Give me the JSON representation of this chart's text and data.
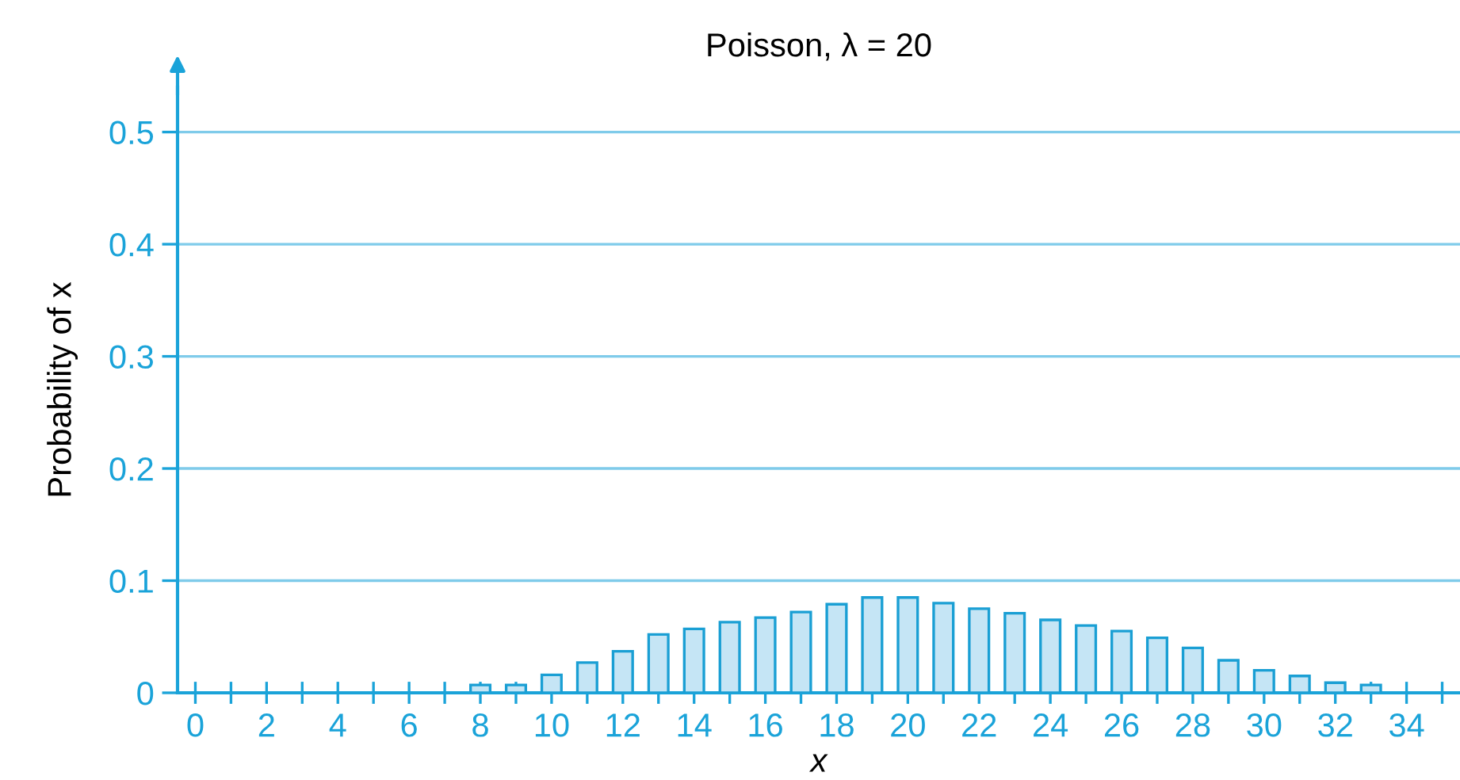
{
  "chart_data": {
    "type": "bar",
    "title": "Poisson, λ = 20",
    "xlabel": "x",
    "ylabel": "Probability of x",
    "x": [
      8,
      9,
      10,
      11,
      12,
      13,
      14,
      15,
      16,
      17,
      18,
      19,
      20,
      21,
      22,
      23,
      24,
      25,
      26,
      27,
      28,
      29,
      30,
      31,
      32,
      33
    ],
    "series": [
      {
        "color": "#c5e5f5",
        "values": [
          0.007,
          0.007,
          0.016,
          0.027,
          0.037,
          0.052,
          0.057,
          0.063,
          0.067,
          0.072,
          0.079,
          0.085,
          0.085,
          0.08,
          0.075,
          0.071,
          0.065,
          0.06,
          0.055,
          0.049,
          0.04,
          0.029,
          0.02,
          0.015,
          0.009,
          0.007
        ]
      }
    ],
    "xlim": [
      -0.5,
      35.5
    ],
    "ylim": [
      0,
      0.54
    ],
    "xticks": [
      0,
      {
        "value": 1,
        "label": null
      },
      2,
      {
        "value": 3,
        "label": null
      },
      4,
      {
        "value": 5,
        "label": null
      },
      6,
      {
        "value": 7,
        "label": null
      },
      8,
      {
        "value": 9,
        "label": null
      },
      10,
      {
        "value": 11,
        "label": null
      },
      12,
      {
        "value": 13,
        "label": null
      },
      14,
      {
        "value": 15,
        "label": null
      },
      16,
      {
        "value": 17,
        "label": null
      },
      18,
      {
        "value": 19,
        "label": null
      },
      20,
      {
        "value": 21,
        "label": null
      },
      22,
      {
        "value": 23,
        "label": null
      },
      24,
      {
        "value": 25,
        "label": null
      },
      26,
      {
        "value": 27,
        "label": null
      },
      28,
      {
        "value": 29,
        "label": null
      },
      30,
      {
        "value": 31,
        "label": null
      },
      32,
      {
        "value": 33,
        "label": null
      },
      34,
      {
        "value": 35,
        "label": null
      }
    ],
    "yticks": [
      0,
      0.1,
      0.2,
      0.3,
      0.4,
      0.5
    ],
    "grid": "y",
    "legend": false
  }
}
